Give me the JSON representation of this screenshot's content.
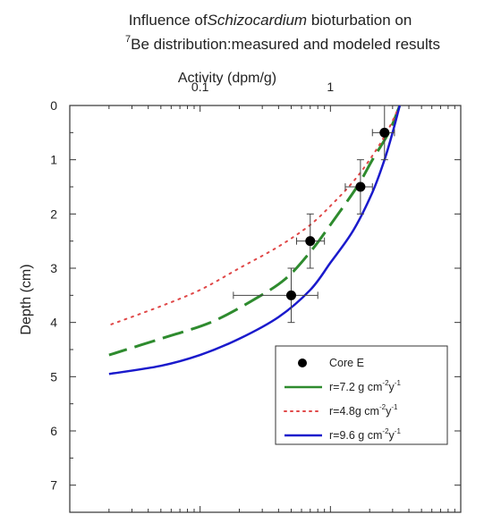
{
  "chart_data": {
    "type": "scatter",
    "title_line1_prefix": "Influence of",
    "title_line1_italic": "Schizocardium",
    "title_line1_suffix": " bioturbation on",
    "title_line2_sup": "7",
    "title_line2_text": "Be distribution:measured and modeled results",
    "xlabel": "Activity (dpm/g)",
    "ylabel": "Depth (cm)",
    "x_scale": "log",
    "x_axis_position": "top",
    "xlim": [
      0.01,
      10
    ],
    "x_tick_labels": [
      {
        "value": 0.1,
        "label": "0.1"
      },
      {
        "value": 1,
        "label": "1"
      }
    ],
    "ylim": [
      7.5,
      0
    ],
    "y_ticks": [
      0,
      1,
      2,
      3,
      4,
      5,
      6,
      7
    ],
    "y_tick_labels": [
      "0",
      "1",
      "2",
      "3",
      "4",
      "5",
      "6",
      "7"
    ],
    "grid": false,
    "legend_position": "lower-right",
    "series": [
      {
        "name": "Core E",
        "kind": "points",
        "color": "#000000",
        "points": [
          {
            "activity": 2.6,
            "depth": 0.5,
            "x_err": [
              2.1,
              3.1
            ],
            "y_err": [
              0,
              1
            ]
          },
          {
            "activity": 1.7,
            "depth": 1.5,
            "x_err": [
              1.3,
              2.1
            ],
            "y_err": [
              1,
              2
            ]
          },
          {
            "activity": 0.7,
            "depth": 2.5,
            "x_err": [
              0.55,
              0.9
            ],
            "y_err": [
              2,
              3
            ]
          },
          {
            "activity": 0.5,
            "depth": 3.5,
            "x_err": [
              0.18,
              0.8
            ],
            "y_err": [
              3,
              4
            ]
          }
        ]
      },
      {
        "name_prefix": "r=7.2 g cm",
        "name_sup1": "-2",
        "name_mid": "y",
        "name_sup2": "-1",
        "kind": "line",
        "style": "dashed",
        "color": "#2e8b2e",
        "x": [
          3.4,
          2.8,
          2.1,
          1.6,
          1.0,
          0.7,
          0.45,
          0.25,
          0.12,
          0.05,
          0.02
        ],
        "y": [
          0,
          0.5,
          1.0,
          1.5,
          2.2,
          2.7,
          3.2,
          3.6,
          4.0,
          4.3,
          4.6
        ]
      },
      {
        "name_prefix": "r=4.8g cm",
        "name_sup1": "-2",
        "name_mid": "y",
        "name_sup2": "-1",
        "kind": "line",
        "style": "dotted",
        "color": "#e04848",
        "x": [
          3.4,
          2.7,
          2.0,
          1.5,
          1.05,
          0.7,
          0.4,
          0.2,
          0.1,
          0.05,
          0.02
        ],
        "y": [
          0,
          0.5,
          1.0,
          1.4,
          1.8,
          2.2,
          2.6,
          3.0,
          3.4,
          3.7,
          4.05
        ]
      },
      {
        "name_prefix": "r=9.6 g cm",
        "name_sup1": "-2",
        "name_mid": "y",
        "name_sup2": "-1",
        "kind": "line",
        "style": "solid",
        "color": "#1a1acc",
        "x": [
          3.4,
          3.0,
          2.6,
          2.1,
          1.5,
          1.0,
          0.7,
          0.4,
          0.2,
          0.1,
          0.05,
          0.02
        ],
        "y": [
          0,
          0.5,
          1.0,
          1.6,
          2.3,
          2.9,
          3.4,
          3.9,
          4.3,
          4.6,
          4.8,
          4.95
        ]
      }
    ]
  }
}
